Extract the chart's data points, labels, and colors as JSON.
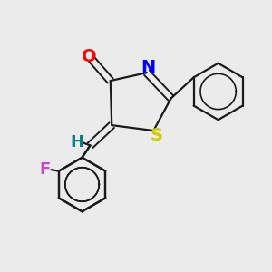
{
  "background_color": "#ebebeb",
  "bond_color": "#1a1a1a",
  "atoms": {
    "O": {
      "color": "#ff0000",
      "fontsize": 14
    },
    "N": {
      "color": "#0000ff",
      "fontsize": 14
    },
    "S": {
      "color": "#cccc00",
      "fontsize": 14
    },
    "H": {
      "color": "#008080",
      "fontsize": 13
    },
    "F": {
      "color": "#cc44cc",
      "fontsize": 13
    }
  },
  "figsize": [
    3.0,
    3.0
  ],
  "dpi": 100
}
